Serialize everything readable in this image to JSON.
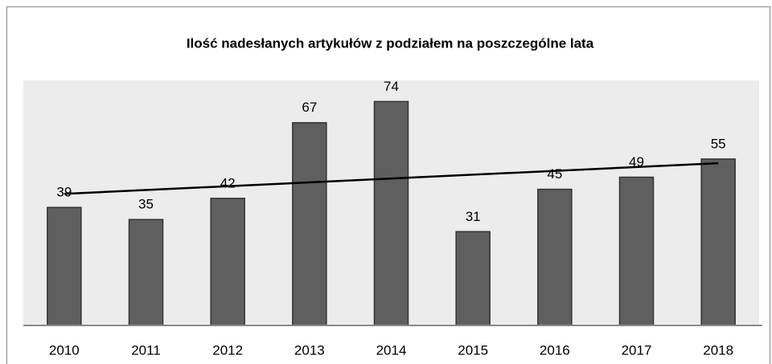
{
  "chart_data": {
    "type": "bar",
    "title": "Ilość nadesłanych artykułów z podziałem na poszczególne lata",
    "categories": [
      "2010",
      "2011",
      "2012",
      "2013",
      "2014",
      "2015",
      "2016",
      "2017",
      "2018"
    ],
    "values": [
      39,
      35,
      42,
      67,
      74,
      31,
      45,
      49,
      55
    ],
    "color": "#5f5f5f",
    "ylim": [
      0,
      81
    ],
    "trendline": "linear"
  }
}
